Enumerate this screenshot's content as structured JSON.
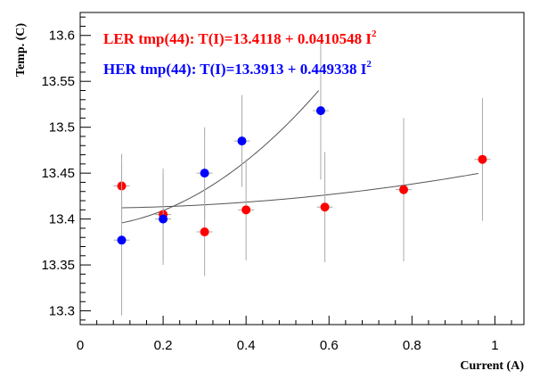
{
  "chart_data": {
    "type": "scatter",
    "xlabel": "Current (A)",
    "ylabel": "Temp. (C)",
    "xlim": [
      0,
      1.07
    ],
    "ylim": [
      13.285,
      13.625
    ],
    "x_ticks": [
      0,
      0.2,
      0.4,
      0.6,
      0.8,
      1
    ],
    "x_tick_labels": [
      "0",
      "0.2",
      "0.4",
      "0.6",
      "0.8",
      "1"
    ],
    "y_ticks": [
      13.3,
      13.35,
      13.4,
      13.45,
      13.5,
      13.55,
      13.6
    ],
    "y_tick_labels": [
      "13.3",
      "13.35",
      "13.4",
      "13.45",
      "13.5",
      "13.55",
      "13.6"
    ],
    "series": [
      {
        "name": "LER tmp(44)",
        "label_prefix": "LER tmp(44): T(I)=13.4118 + 0.0410548 I",
        "label_sup": "2",
        "color": "#ff0000",
        "fit": {
          "a": 13.4118,
          "b": 0.0410548,
          "x_range": [
            0.1,
            0.96
          ]
        },
        "points": [
          {
            "x": 0.1,
            "y": 13.436,
            "err": 0.035
          },
          {
            "x": 0.2,
            "y": 13.405,
            "err": 0.05
          },
          {
            "x": 0.3,
            "y": 13.386,
            "err": 0.048
          },
          {
            "x": 0.4,
            "y": 13.41,
            "err": 0.055
          },
          {
            "x": 0.59,
            "y": 13.413,
            "err": 0.06
          },
          {
            "x": 0.78,
            "y": 13.432,
            "err": 0.078
          },
          {
            "x": 0.97,
            "y": 13.465,
            "err": 0.067
          }
        ]
      },
      {
        "name": "HER tmp(44)",
        "label_prefix": "HER tmp(44): T(I)=13.3913 + 0.449338 I",
        "label_sup": "2",
        "color": "#0000ff",
        "fit": {
          "a": 13.3913,
          "b": 0.449338,
          "x_range": [
            0.1,
            0.575
          ]
        },
        "points": [
          {
            "x": 0.1,
            "y": 13.377,
            "err": 0.082
          },
          {
            "x": 0.2,
            "y": 13.4,
            "err": 0.05
          },
          {
            "x": 0.3,
            "y": 13.45,
            "err": 0.05
          },
          {
            "x": 0.39,
            "y": 13.485,
            "err": 0.05
          },
          {
            "x": 0.58,
            "y": 13.518,
            "err": 0.075
          }
        ]
      }
    ],
    "fit_line_color": "#555555",
    "error_bar_color": "#aaaaaa",
    "grid": false
  }
}
